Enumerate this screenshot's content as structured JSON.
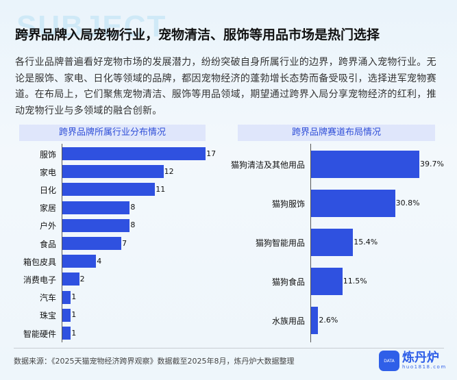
{
  "header": {
    "bg_word": "SUBJECT",
    "title": "跨界品牌入局宠物行业，宠物清洁、服饰等用品市场是热门选择"
  },
  "paragraph": "各行业品牌普遍看好宠物市场的发展潜力，纷纷突破自身所属行业的边界，跨界涌入宠物行业。无论是服饰、家电、日化等领域的品牌，都因宠物经济的蓬勃增长态势而备受吸引，选择进军宠物赛道。在布局上，它们聚焦宠物清洁、服饰等用品领域，期望通过跨界入局分享宠物经济的红利，推动宠物行业与多领域的融合创新。",
  "footer": {
    "source": "数据来源：《2025天猫宠物经济跨界观察》数据截至2025年8月，炼丹炉大数据整理",
    "logo_name": "炼丹炉",
    "logo_url": "huo1818.com",
    "logo_badge": "DATA"
  },
  "colors": {
    "bar": "#2f51e0",
    "panel_head_bg": "#dfe6fb",
    "panel_head_text": "#2f4fd8"
  },
  "chart_data": [
    {
      "type": "bar",
      "orientation": "horizontal",
      "title": "跨界品牌所属行业分布情况",
      "categories": [
        "服饰",
        "家电",
        "日化",
        "家居",
        "户外",
        "食品",
        "箱包皮具",
        "消费电子",
        "汽车",
        "珠宝",
        "智能硬件"
      ],
      "values": [
        17,
        12,
        11,
        8,
        8,
        7,
        4,
        2,
        1,
        1,
        1
      ],
      "value_labels": [
        "17",
        "12",
        "11",
        "8",
        "8",
        "7",
        "4",
        "2",
        "1",
        "1",
        "1"
      ],
      "xlabel": "",
      "ylabel": "",
      "grid": false
    },
    {
      "type": "bar",
      "orientation": "horizontal",
      "title": "跨界品牌赛道布局情况",
      "categories": [
        "猫狗清洁及其他用品",
        "猫狗服饰",
        "猫狗智能用品",
        "猫狗食品",
        "水族用品"
      ],
      "values": [
        39.7,
        30.8,
        15.4,
        11.5,
        2.6
      ],
      "value_labels": [
        "39.7%",
        "30.8%",
        "15.4%",
        "11.5%",
        "2.6%"
      ],
      "xlabel": "",
      "ylabel": "",
      "grid": false
    }
  ]
}
